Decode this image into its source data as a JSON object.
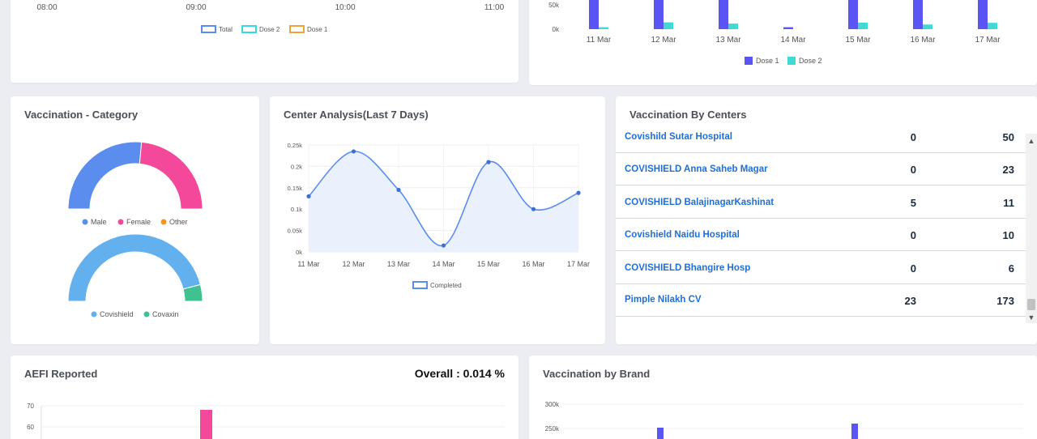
{
  "top_left_chart": {
    "x_ticks": [
      "08:00",
      "09:00",
      "10:00",
      "11:00"
    ],
    "legend": [
      {
        "label": "Total",
        "color": "#5b8def"
      },
      {
        "label": "Dose 2",
        "color": "#3ad6e6"
      },
      {
        "label": "Dose 1",
        "color": "#f2a23c"
      }
    ]
  },
  "top_right_chart": {
    "y_ticks": [
      "50k",
      "0k"
    ],
    "x_ticks": [
      "11 Mar",
      "12 Mar",
      "13 Mar",
      "14 Mar",
      "15 Mar",
      "16 Mar",
      "17 Mar"
    ],
    "legend": [
      {
        "label": "Dose 1",
        "color": "#5a55f2"
      },
      {
        "label": "Dose 2",
        "color": "#40d9d3"
      }
    ]
  },
  "category_card": {
    "title": "Vaccination - Category",
    "gender_legend": [
      {
        "label": "Male",
        "color": "#5b8def"
      },
      {
        "label": "Female",
        "color": "#f4489a"
      },
      {
        "label": "Other",
        "color": "#f7941d"
      }
    ],
    "brand_legend": [
      {
        "label": "Covishield",
        "color": "#63b0ef"
      },
      {
        "label": "Covaxin",
        "color": "#3fc28f"
      }
    ]
  },
  "center_analysis_card": {
    "title": "Center Analysis(Last 7 Days)",
    "y_ticks": [
      "0.25k",
      "0.2k",
      "0.15k",
      "0.1k",
      "0.05k",
      "0k"
    ],
    "legend": "Completed"
  },
  "centers_card": {
    "title": "Vaccination By Centers",
    "rows": [
      {
        "name": "Covishild Sutar Hospital",
        "a": "0",
        "b": "50"
      },
      {
        "name": "COVISHIELD Anna Saheb Magar",
        "a": "0",
        "b": "23"
      },
      {
        "name": "COVISHIELD BalajinagarKashinat",
        "a": "5",
        "b": "11"
      },
      {
        "name": "Covishield Naidu Hospital",
        "a": "0",
        "b": "10"
      },
      {
        "name": "COVISHIELD Bhangire Hosp",
        "a": "0",
        "b": "6"
      },
      {
        "name": "Pimple Nilakh CV",
        "a": "23",
        "b": "173"
      }
    ],
    "scroll_up_icon": "chevron-up-icon",
    "scroll_down_icon": "chevron-down-icon"
  },
  "aefi_card": {
    "title": "AEFI Reported",
    "overall": "Overall : 0.014 %",
    "y_ticks": [
      "70",
      "60"
    ]
  },
  "brand_card": {
    "title": "Vaccination by Brand",
    "y_ticks": [
      "300k",
      "250k"
    ]
  },
  "chart_data": [
    {
      "type": "bar",
      "categories": [
        "11 Mar",
        "12 Mar",
        "13 Mar",
        "14 Mar",
        "15 Mar",
        "16 Mar",
        "17 Mar"
      ],
      "series": [
        {
          "name": "Dose 1",
          "values": [
            70000,
            70000,
            70000,
            4000,
            70000,
            70000,
            70000
          ]
        },
        {
          "name": "Dose 2",
          "values": [
            4000,
            14000,
            11500,
            0,
            13500,
            9500,
            13000
          ]
        }
      ],
      "ylim": [
        0,
        70000
      ],
      "y_ticks": [
        "50k",
        "0k"
      ]
    },
    {
      "type": "pie",
      "variant": "semi-donut",
      "categories": [
        "Male",
        "Female",
        "Other"
      ],
      "values": [
        53,
        47,
        0
      ]
    },
    {
      "type": "pie",
      "variant": "semi-donut",
      "categories": [
        "Covishield",
        "Covaxin"
      ],
      "values": [
        92,
        8
      ]
    },
    {
      "type": "area",
      "title": "Center Analysis(Last 7 Days)",
      "categories": [
        "11 Mar",
        "12 Mar",
        "13 Mar",
        "14 Mar",
        "15 Mar",
        "16 Mar",
        "17 Mar"
      ],
      "series": [
        {
          "name": "Completed",
          "values": [
            130,
            235,
            145,
            15,
            210,
            100,
            138
          ]
        }
      ],
      "ylim": [
        0,
        250
      ]
    }
  ]
}
